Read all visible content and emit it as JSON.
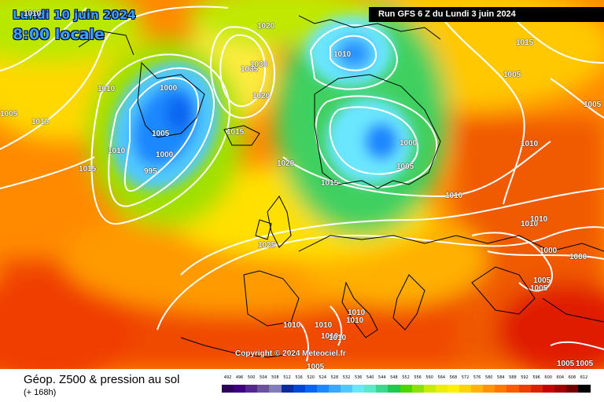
{
  "header": {
    "date_label": "Lundi 10 juin 2024",
    "time_label": "8:00 locale",
    "run_label": "Run GFS 6 Z du Lundi 3 juin 2024"
  },
  "footer": {
    "title": "Géop. Z500 & pression au sol",
    "subtitle": "(+ 168h)",
    "copyright": "Copyright © 2024 Meteociel.fr"
  },
  "legend": {
    "values": [
      "492",
      "496",
      "500",
      "504",
      "508",
      "512",
      "516",
      "520",
      "524",
      "528",
      "532",
      "536",
      "540",
      "544",
      "548",
      "552",
      "556",
      "560",
      "564",
      "568",
      "572",
      "576",
      "580",
      "584",
      "588",
      "592",
      "596",
      "600",
      "604",
      "608",
      "612"
    ],
    "colors": [
      "#2d0059",
      "#3f007d",
      "#54278f",
      "#6a51a3",
      "#807dba",
      "#0a2c9e",
      "#0047d6",
      "#0a66f0",
      "#1e88ff",
      "#3aa6ff",
      "#50c8ff",
      "#6be6ff",
      "#5fe8c8",
      "#3dd68c",
      "#22c84e",
      "#4ed400",
      "#8ee000",
      "#c8ec00",
      "#eeee00",
      "#fff200",
      "#ffd400",
      "#ffb400",
      "#ff9600",
      "#ff7800",
      "#ff5a00",
      "#f03c00",
      "#e01e00",
      "#c80000",
      "#a00000",
      "#700000",
      "#000000"
    ]
  },
  "pressure_labels": [
    "1010",
    "1020",
    "1015",
    "1005",
    "1010",
    "1000",
    "1005",
    "1000",
    "1010",
    "1015",
    "995",
    "1035",
    "1030",
    "1020",
    "1015",
    "1010",
    "1020",
    "1015",
    "1000",
    "1005",
    "1010",
    "1015",
    "1005",
    "1005",
    "1010",
    "1010",
    "1010",
    "1000",
    "1000",
    "1005",
    "1005",
    "1025",
    "1010",
    "1010",
    "1010",
    "1010",
    "1010",
    "1010",
    "1005",
    "1005",
    "1005"
  ],
  "colors": {
    "contour": "#ffffff",
    "run_box_bg": "#000000",
    "title_color": "#3aa0ff"
  }
}
